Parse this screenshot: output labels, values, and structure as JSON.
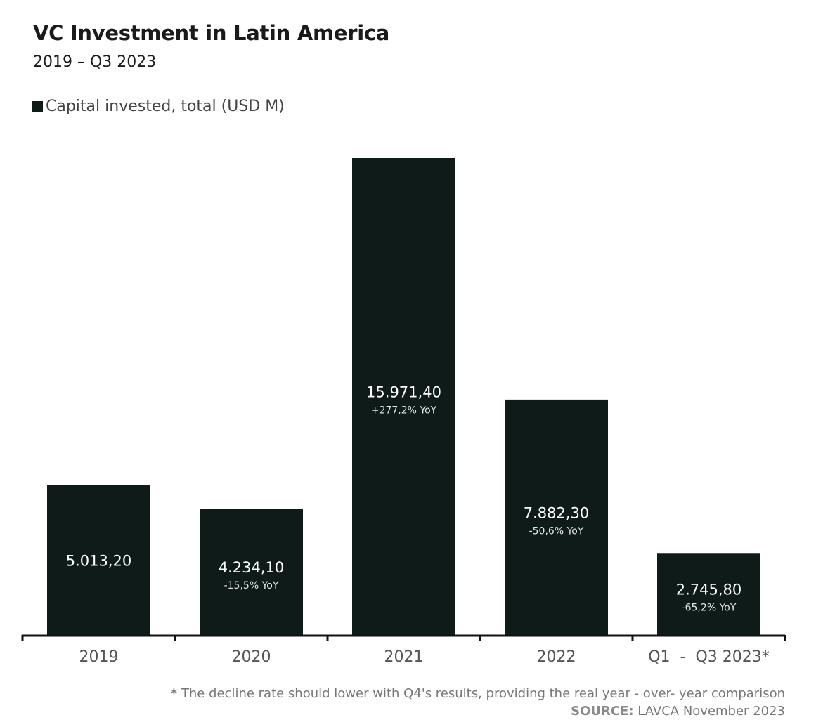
{
  "title": "VC Investment in Latin America",
  "subtitle": "2019 – Q3 2023",
  "legend": {
    "label": "Capital invested, total (USD M)",
    "color": "#0f1b19"
  },
  "footnote": {
    "star": "*",
    "text": "The decline rate should lower with Q4's results, providing the real year - over- year comparison"
  },
  "source": {
    "label": "SOURCE:",
    "text": "LAVCA November 2023"
  },
  "chart_data": {
    "type": "bar",
    "categories": [
      "2019",
      "2020",
      "2021",
      "2022",
      "Q1  -  Q3 2023*"
    ],
    "values": [
      5013.2,
      4234.1,
      15971.4,
      7882.3,
      2745.8
    ],
    "value_labels": [
      "5.013,20",
      "4.234,10",
      "15.971,40",
      "7.882,30",
      "2.745,80"
    ],
    "yoy_labels": [
      "",
      "-15,5% YoY",
      "+277,2% YoY",
      "-50,6% YoY",
      "-65,2% YoY"
    ],
    "ylim": [
      0,
      15971.4
    ],
    "bar_color": "#0f1b19",
    "grid": false
  }
}
